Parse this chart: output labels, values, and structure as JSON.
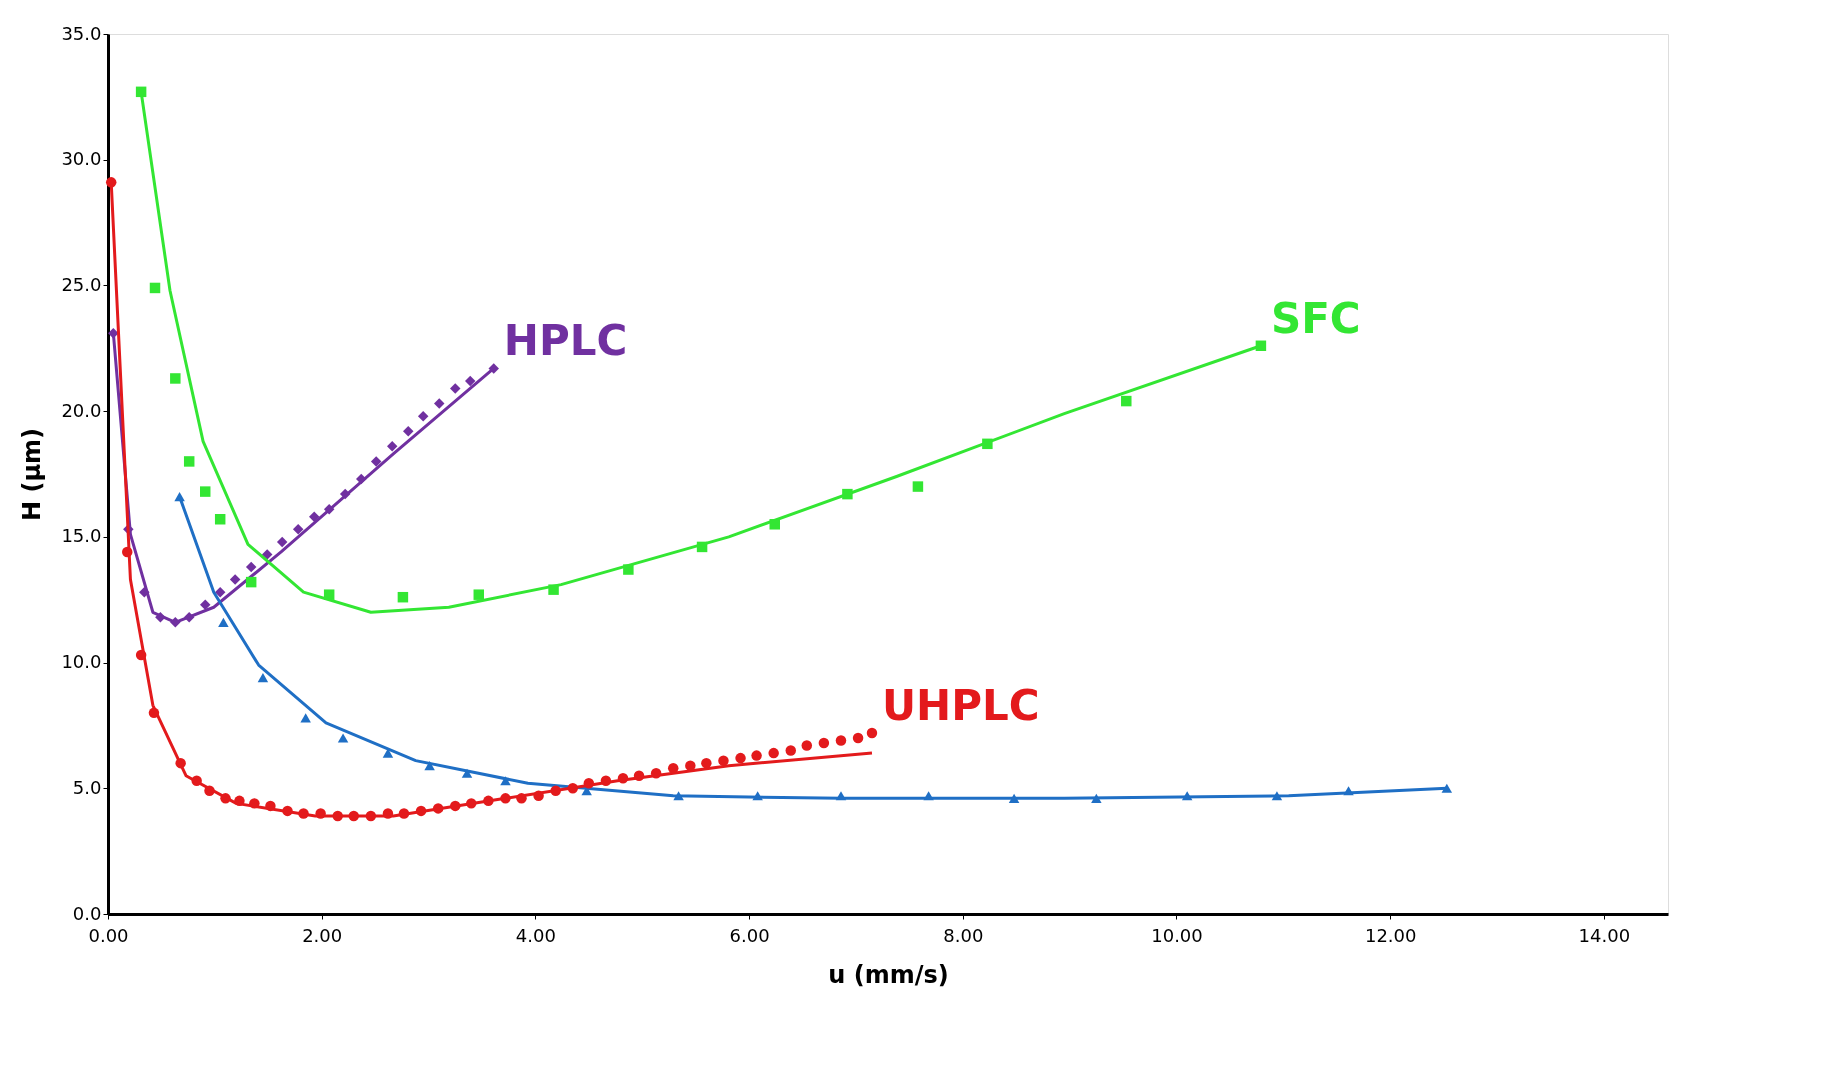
{
  "chart_data": {
    "type": "scatter",
    "xlabel": "u (mm/s)",
    "ylabel": "H (µm)",
    "xlim": [
      0,
      14.6
    ],
    "ylim": [
      0,
      35
    ],
    "xticks": [
      {
        "value": 0,
        "label": "0.00"
      },
      {
        "value": 2,
        "label": "2.00"
      },
      {
        "value": 4,
        "label": "4.00"
      },
      {
        "value": 6,
        "label": "6.00"
      },
      {
        "value": 8,
        "label": "8.00"
      },
      {
        "value": 10,
        "label": "10.00"
      },
      {
        "value": 12,
        "label": "12.00"
      },
      {
        "value": 14,
        "label": "14.00"
      }
    ],
    "yticks": [
      {
        "value": 0,
        "label": "0.0"
      },
      {
        "value": 5,
        "label": "5.0"
      },
      {
        "value": 10,
        "label": "10.0"
      },
      {
        "value": 15,
        "label": "15.0"
      },
      {
        "value": 20,
        "label": "20.0"
      },
      {
        "value": 25,
        "label": "25.0"
      },
      {
        "value": 30,
        "label": "30.0"
      },
      {
        "value": 35,
        "label": "35.0"
      }
    ],
    "grid": false,
    "legend": false,
    "series": [
      {
        "type": "line",
        "color": "#7030a0",
        "marker": "none",
        "x": [
          0.05,
          0.21,
          0.42,
          0.63,
          0.99,
          1.62,
          2.67,
          3.61
        ],
        "values": [
          23.1,
          15.1,
          12.0,
          11.6,
          12.2,
          14.4,
          18.3,
          21.7
        ]
      },
      {
        "name": "HPLC",
        "color": "#7030a0",
        "marker": "diamond",
        "x": [
          0.05,
          0.19,
          0.34,
          0.49,
          0.63,
          0.76,
          0.91,
          1.05,
          1.19,
          1.34,
          1.49,
          1.63,
          1.78,
          1.93,
          2.07,
          2.22,
          2.37,
          2.51,
          2.66,
          2.81,
          2.95,
          3.1,
          3.25,
          3.39,
          3.61
        ],
        "values": [
          23.1,
          15.3,
          12.8,
          11.8,
          11.6,
          11.8,
          12.3,
          12.8,
          13.3,
          13.8,
          14.3,
          14.8,
          15.3,
          15.8,
          16.1,
          16.7,
          17.3,
          18.0,
          18.6,
          19.2,
          19.8,
          20.3,
          20.9,
          21.2,
          21.7
        ]
      },
      {
        "type": "line",
        "color": "#33e633",
        "marker": "none",
        "x": [
          0.31,
          0.58,
          0.89,
          1.31,
          1.83,
          2.46,
          3.19,
          4.24,
          5.81,
          7.38,
          8.95,
          10.79
        ],
        "values": [
          32.7,
          24.8,
          18.8,
          14.7,
          12.8,
          12.0,
          12.2,
          13.1,
          15.0,
          17.4,
          19.9,
          22.6
        ]
      },
      {
        "name": "SFC",
        "color": "#33e633",
        "marker": "square",
        "x": [
          0.31,
          0.44,
          0.63,
          0.76,
          0.91,
          1.05,
          1.34,
          2.07,
          2.76,
          3.47,
          4.17,
          4.87,
          5.56,
          6.24,
          6.92,
          7.58,
          8.23,
          9.53,
          10.79
        ],
        "values": [
          32.7,
          24.9,
          21.3,
          18.0,
          16.8,
          15.7,
          13.2,
          12.7,
          12.6,
          12.7,
          12.9,
          13.7,
          14.6,
          15.5,
          16.7,
          17.0,
          18.7,
          20.4,
          22.6
        ]
      },
      {
        "type": "line",
        "color": "#1f6fc5",
        "marker": "none",
        "x": [
          0.67,
          0.99,
          1.41,
          2.04,
          2.88,
          3.93,
          5.29,
          6.86,
          8.95,
          11.05,
          12.53
        ],
        "values": [
          16.6,
          12.8,
          9.9,
          7.6,
          6.1,
          5.2,
          4.7,
          4.6,
          4.6,
          4.7,
          5.0
        ]
      },
      {
        "color": "#1f6fc5",
        "marker": "triangle",
        "x": [
          0.67,
          1.08,
          1.45,
          1.85,
          2.2,
          2.62,
          3.01,
          3.36,
          3.72,
          4.48,
          5.34,
          6.08,
          6.86,
          7.68,
          8.48,
          9.25,
          10.1,
          10.94,
          11.61,
          12.53
        ],
        "values": [
          16.6,
          11.6,
          9.4,
          7.8,
          7.0,
          6.4,
          5.9,
          5.6,
          5.3,
          4.9,
          4.7,
          4.7,
          4.7,
          4.7,
          4.6,
          4.6,
          4.7,
          4.7,
          4.9,
          5.0
        ]
      },
      {
        "type": "line",
        "color": "#e31a1c",
        "marker": "none",
        "x": [
          0.03,
          0.21,
          0.42,
          0.73,
          1.2,
          1.94,
          2.67,
          3.72,
          4.77,
          5.81,
          7.15
        ],
        "values": [
          29.1,
          13.3,
          8.3,
          5.5,
          4.4,
          3.9,
          3.9,
          4.6,
          5.3,
          5.9,
          6.4
        ]
      },
      {
        "name": "UHPLC",
        "color": "#e31a1c",
        "marker": "circle",
        "x": [
          0.03,
          0.18,
          0.31,
          0.43,
          0.68,
          0.83,
          0.95,
          1.1,
          1.23,
          1.37,
          1.52,
          1.68,
          1.83,
          1.99,
          2.15,
          2.3,
          2.46,
          2.62,
          2.77,
          2.93,
          3.09,
          3.25,
          3.4,
          3.56,
          3.72,
          3.87,
          4.03,
          4.19,
          4.35,
          4.5,
          4.66,
          4.82,
          4.97,
          5.13,
          5.29,
          5.45,
          5.6,
          5.76,
          5.92,
          6.07,
          6.23,
          6.39,
          6.54,
          6.7,
          6.86,
          7.02,
          7.15
        ],
        "values": [
          29.1,
          14.4,
          10.3,
          8.0,
          6.0,
          5.3,
          4.9,
          4.6,
          4.5,
          4.4,
          4.3,
          4.1,
          4.0,
          4.0,
          3.9,
          3.9,
          3.9,
          4.0,
          4.0,
          4.1,
          4.2,
          4.3,
          4.4,
          4.5,
          4.6,
          4.6,
          4.7,
          4.9,
          5.0,
          5.2,
          5.3,
          5.4,
          5.5,
          5.6,
          5.8,
          5.9,
          6.0,
          6.1,
          6.2,
          6.3,
          6.4,
          6.5,
          6.7,
          6.8,
          6.9,
          7.0,
          7.2
        ]
      }
    ]
  }
}
